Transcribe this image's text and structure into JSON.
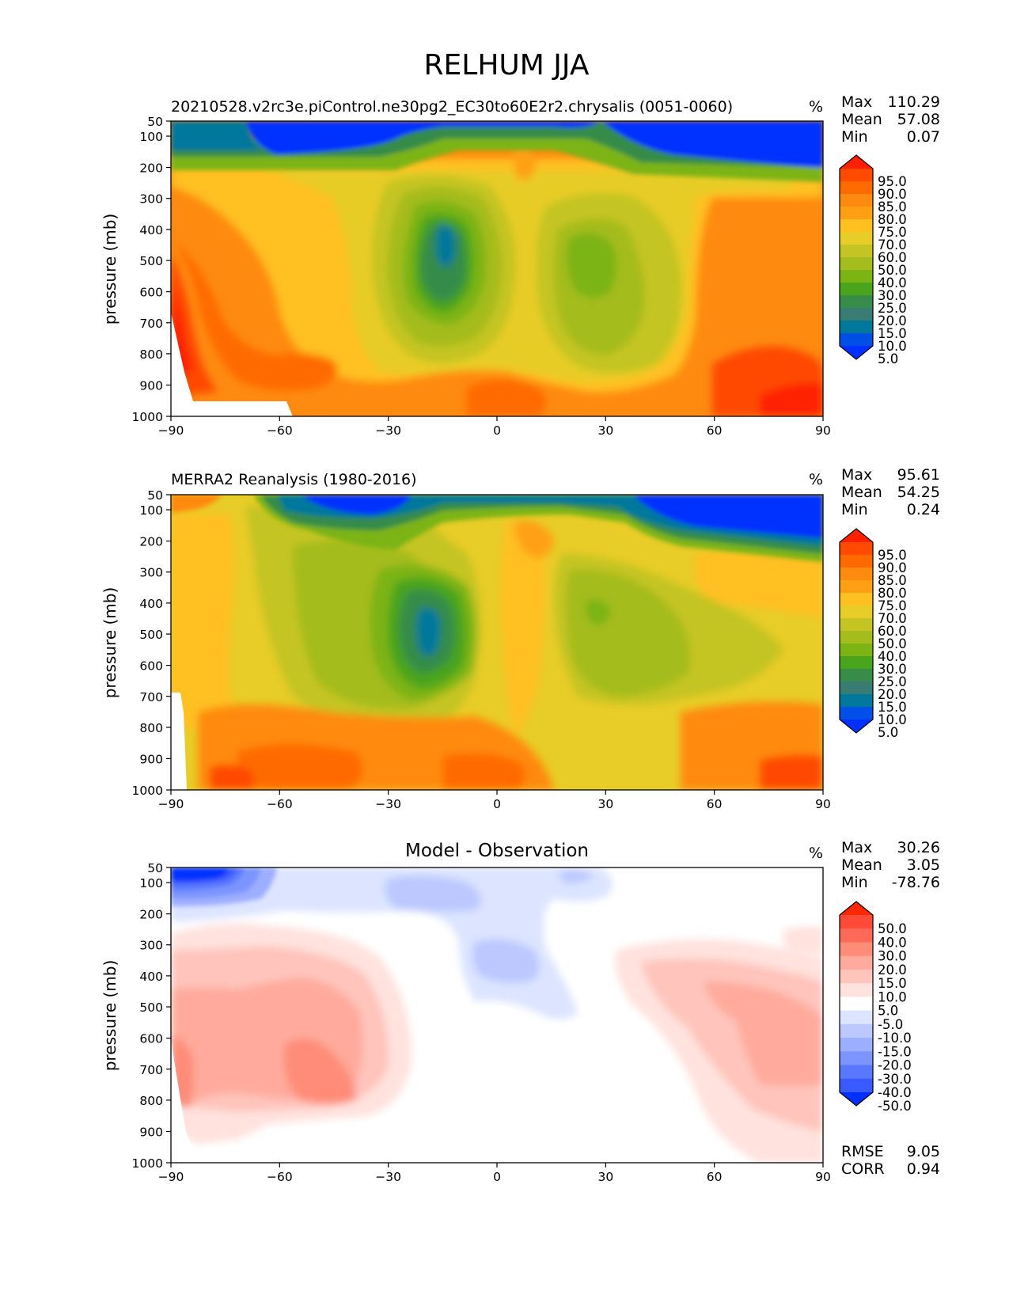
{
  "figure": {
    "title": "RELHUM JJA",
    "units": "%"
  },
  "chart_data": [
    {
      "type": "heatmap",
      "title": "20210528.v2rc3e.piControl.ne30pg2_EC30to60E2r2.chrysalis (0051-0060)",
      "units": "%",
      "xlabel": "",
      "ylabel": "pressure (mb)",
      "xlim": [
        -90,
        90
      ],
      "ylim": [
        1000,
        50
      ],
      "xticks": [
        "−90",
        "−60",
        "−30",
        "0",
        "30",
        "60",
        "90"
      ],
      "yticks": [
        "50",
        "100",
        "200",
        "300",
        "400",
        "500",
        "600",
        "700",
        "800",
        "900",
        "1000"
      ],
      "stats": [
        {
          "label": "Max",
          "value": "110.29"
        },
        {
          "label": "Mean",
          "value": "57.08"
        },
        {
          "label": "Min",
          "value": "0.07"
        }
      ],
      "colorbar": {
        "labels": [
          "95.0",
          "90.0",
          "85.0",
          "80.0",
          "75.0",
          "70.0",
          "60.0",
          "50.0",
          "40.0",
          "30.0",
          "25.0",
          "20.0",
          "15.0",
          "10.0",
          "5.0"
        ],
        "colors": [
          "#ff2000",
          "#ff4a00",
          "#ff6a00",
          "#ff8a10",
          "#ffa014",
          "#ffc020",
          "#e8cc28",
          "#c4c424",
          "#a4bc1c",
          "#7cb414",
          "#4aa41c",
          "#368c48",
          "#387c74",
          "#00789c",
          "#0050e8",
          "#0030ff"
        ]
      }
    },
    {
      "type": "heatmap",
      "title": "MERRA2 Reanalysis (1980-2016)",
      "units": "%",
      "xlabel": "",
      "ylabel": "pressure (mb)",
      "xlim": [
        -90,
        90
      ],
      "ylim": [
        1000,
        50
      ],
      "xticks": [
        "−90",
        "−60",
        "−30",
        "0",
        "30",
        "60",
        "90"
      ],
      "yticks": [
        "50",
        "100",
        "200",
        "300",
        "400",
        "500",
        "600",
        "700",
        "800",
        "900",
        "1000"
      ],
      "stats": [
        {
          "label": "Max",
          "value": "95.61"
        },
        {
          "label": "Mean",
          "value": "54.25"
        },
        {
          "label": "Min",
          "value": "0.24"
        }
      ],
      "colorbar": {
        "labels": [
          "95.0",
          "90.0",
          "85.0",
          "80.0",
          "75.0",
          "70.0",
          "60.0",
          "50.0",
          "40.0",
          "30.0",
          "25.0",
          "20.0",
          "15.0",
          "10.0",
          "5.0"
        ],
        "colors": [
          "#ff2000",
          "#ff4a00",
          "#ff6a00",
          "#ff8a10",
          "#ffa014",
          "#ffc020",
          "#e8cc28",
          "#c4c424",
          "#a4bc1c",
          "#7cb414",
          "#4aa41c",
          "#368c48",
          "#387c74",
          "#00789c",
          "#0050e8",
          "#0030ff"
        ]
      }
    },
    {
      "type": "heatmap",
      "title": "Model - Observation",
      "units": "%",
      "xlabel": "",
      "ylabel": "pressure (mb)",
      "xlim": [
        -90,
        90
      ],
      "ylim": [
        1000,
        50
      ],
      "xticks": [
        "−90",
        "−60",
        "−30",
        "0",
        "30",
        "60",
        "90"
      ],
      "yticks": [
        "50",
        "100",
        "200",
        "300",
        "400",
        "500",
        "600",
        "700",
        "800",
        "900",
        "1000"
      ],
      "stats": [
        {
          "label": "Max",
          "value": "30.26"
        },
        {
          "label": "Mean",
          "value": "3.05"
        },
        {
          "label": "Min",
          "value": "-78.76"
        }
      ],
      "metrics": [
        {
          "label": "RMSE",
          "value": "9.05"
        },
        {
          "label": "CORR",
          "value": "0.94"
        }
      ],
      "colorbar": {
        "labels": [
          "50.0",
          "40.0",
          "30.0",
          "20.0",
          "15.0",
          "10.0",
          "5.0",
          "-5.0",
          "-10.0",
          "-15.0",
          "-20.0",
          "-30.0",
          "-40.0",
          "-50.0"
        ],
        "colors": [
          "#ff2800",
          "#ff4a38",
          "#ff6a58",
          "#ff8c78",
          "#ffaa9c",
          "#ffc4bc",
          "#ffe2de",
          "#ffffff",
          "#dce4ff",
          "#bcc8ff",
          "#9caeff",
          "#7c94ff",
          "#5a78ff",
          "#3a5aff",
          "#0030ff"
        ]
      }
    }
  ]
}
